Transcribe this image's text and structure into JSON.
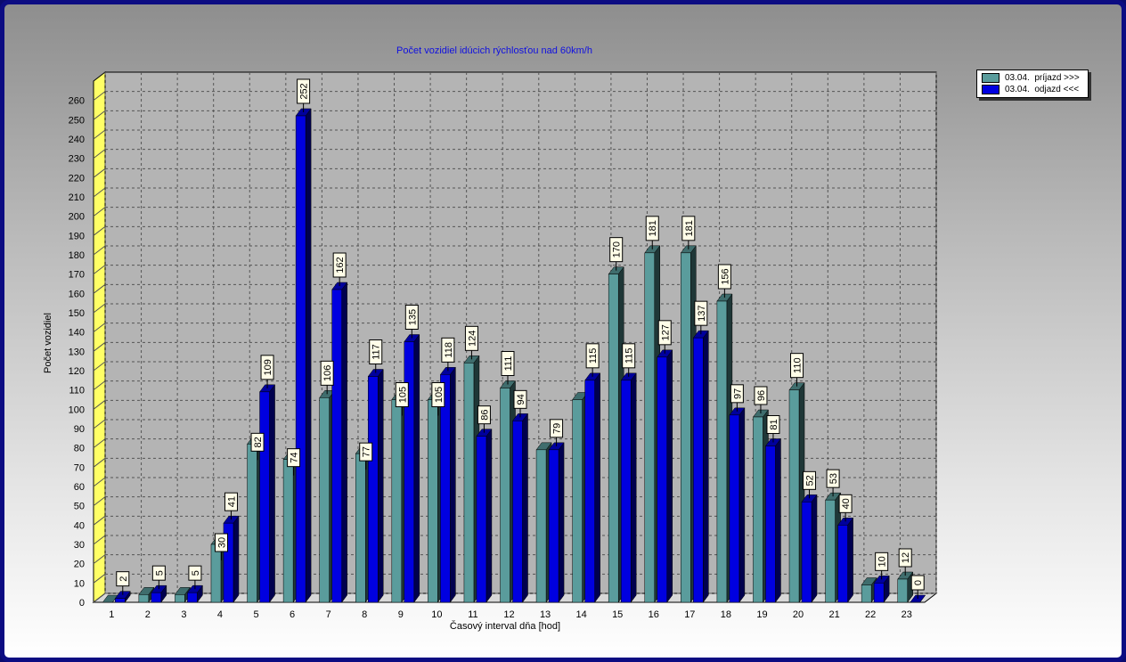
{
  "chart_data": {
    "type": "bar",
    "title": "Počet vozidiel idúcich rýchlosťou nad 60km/h",
    "xlabel": "Časový interval dňa [hod]",
    "ylabel": "Počet vozidiel",
    "ylim": [
      0,
      270
    ],
    "yticks": [
      0,
      10,
      20,
      30,
      40,
      50,
      60,
      70,
      80,
      90,
      100,
      110,
      120,
      130,
      140,
      150,
      160,
      170,
      180,
      190,
      200,
      210,
      220,
      230,
      240,
      250,
      260
    ],
    "grid": true,
    "legend_position": "top-right",
    "categories": [
      "1",
      "2",
      "3",
      "4",
      "5",
      "6",
      "7",
      "8",
      "9",
      "10",
      "11",
      "12",
      "13",
      "14",
      "15",
      "16",
      "17",
      "18",
      "19",
      "20",
      "21",
      "22",
      "23"
    ],
    "series": [
      {
        "name": "03.04.  príjazd >>>",
        "color": "#5a9c9c",
        "values": [
          0,
          4,
          4,
          30,
          82,
          74,
          106,
          77,
          105,
          105,
          124,
          111,
          79,
          105,
          170,
          181,
          181,
          156,
          96,
          110,
          53,
          9,
          12
        ],
        "labels": [
          "",
          "",
          "",
          "",
          "",
          "",
          "106",
          "",
          "",
          "",
          "124",
          "111",
          "",
          "",
          "170",
          "181",
          "181",
          "156",
          "96",
          "110",
          "53",
          "",
          "12"
        ]
      },
      {
        "name": "03.04.  odjazd <<<",
        "color": "#0000e0",
        "values": [
          2,
          5,
          5,
          41,
          109,
          252,
          162,
          117,
          135,
          118,
          86,
          94,
          79,
          115,
          115,
          127,
          137,
          97,
          81,
          52,
          40,
          10,
          0
        ],
        "labels": [
          "2",
          "5",
          "5",
          "41",
          "109",
          "252",
          "162",
          "117",
          "135",
          "118",
          "86",
          "94",
          "79",
          "115",
          "115",
          "127",
          "137",
          "97",
          "81",
          "52",
          "40",
          "10",
          "0"
        ]
      }
    ],
    "extra_labels": [
      "30",
      "82",
      "74",
      "77",
      "105",
      "105"
    ]
  },
  "legend": {
    "items": [
      {
        "label": "03.04.  príjazd >>>",
        "color": "#5a9c9c"
      },
      {
        "label": "03.04.  odjazd <<<",
        "color": "#0000e0"
      }
    ]
  }
}
